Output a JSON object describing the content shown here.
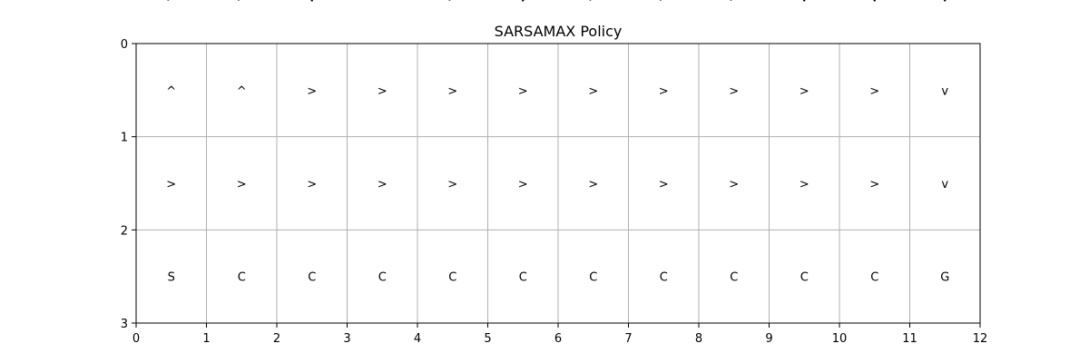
{
  "chart_data": {
    "type": "heatmap",
    "title": "SARSAMAX Policy",
    "xlabel": "",
    "ylabel": "",
    "xlim": [
      0,
      12
    ],
    "ylim": [
      3,
      0
    ],
    "grid": true,
    "x_ticks": [
      "0",
      "1",
      "2",
      "3",
      "4",
      "5",
      "6",
      "7",
      "8",
      "9",
      "10",
      "11",
      "12"
    ],
    "y_ticks": [
      "0",
      "1",
      "2",
      "3"
    ],
    "cells": [
      [
        ">",
        ">",
        "v",
        "^",
        ">",
        "v",
        ">",
        ">",
        ">",
        "v",
        "v",
        "v"
      ],
      [
        "^",
        "^",
        ">",
        ">",
        ">",
        ">",
        ">",
        ">",
        ">",
        ">",
        ">",
        "v"
      ],
      [
        ">",
        ">",
        ">",
        ">",
        ">",
        ">",
        ">",
        ">",
        ">",
        ">",
        ">",
        "v"
      ],
      [
        "S",
        "C",
        "C",
        "C",
        "C",
        "C",
        "C",
        "C",
        "C",
        "C",
        "C",
        "G"
      ]
    ],
    "colors": {
      "grid": "#b0b0b0",
      "frame": "#000000",
      "text": "#000000"
    }
  }
}
